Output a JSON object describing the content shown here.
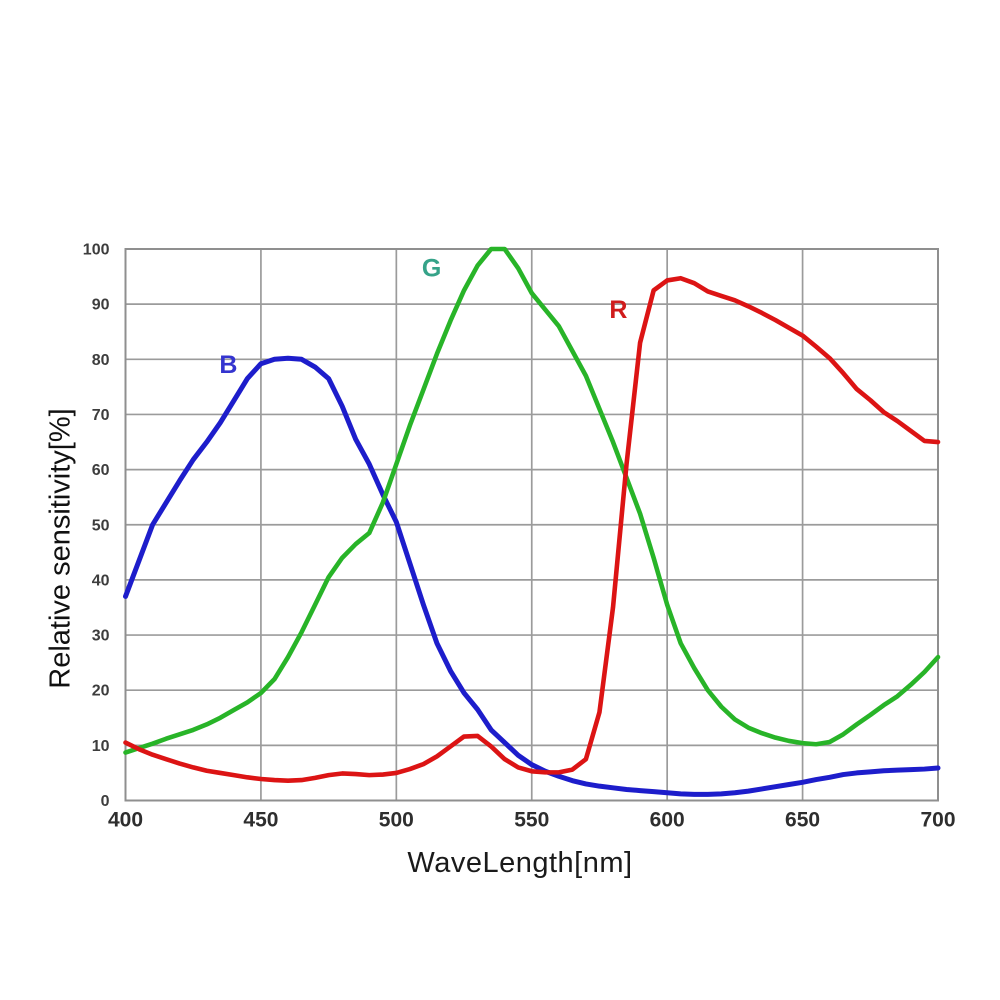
{
  "axis_titles": {
    "x": "WaveLength[nm]",
    "y": "Relative sensitivity[%]"
  },
  "colors": {
    "background": "#ffffff",
    "grid": "#9b9b9b",
    "border": "#8f8f8f",
    "tick_text": "#3d3d3d",
    "blue_curve": "#1d1dcb",
    "green_curve": "#28b428",
    "red_curve": "#dc1414",
    "label_b": "#3434cf",
    "label_g": "#36a389",
    "label_r": "#d01c1c"
  },
  "chart_data": {
    "type": "line",
    "title": "",
    "xlabel": "WaveLength[nm]",
    "ylabel": "Relative sensitivity[%]",
    "xlim": [
      400,
      700
    ],
    "ylim": [
      0,
      100
    ],
    "x_ticks": [
      400,
      450,
      500,
      550,
      600,
      650,
      700
    ],
    "y_ticks": [
      0,
      10,
      20,
      30,
      40,
      50,
      60,
      70,
      80,
      90,
      100
    ],
    "grid": true,
    "legend_position": "inline-labels",
    "x_start": 400,
    "x_step": 5,
    "series": [
      {
        "name": "B",
        "color": "#1d1dcb",
        "label": "B",
        "label_color": "#3434cf",
        "label_x": 438,
        "label_y": 77.5,
        "line_width": 5,
        "values": [
          37,
          43.5,
          50,
          54,
          58,
          61.8,
          65,
          68.5,
          72.5,
          76.5,
          79.2,
          80,
          80.2,
          80,
          78.6,
          76.5,
          71.5,
          65.5,
          61,
          55.5,
          50.5,
          43,
          35.5,
          28.5,
          23.5,
          19.5,
          16.5,
          12.8,
          10.5,
          8.2,
          6.5,
          5.3,
          4.4,
          3.6,
          3,
          2.6,
          2.3,
          2,
          1.8,
          1.6,
          1.4,
          1.2,
          1.1,
          1.1,
          1.2,
          1.4,
          1.7,
          2.1,
          2.5,
          2.9,
          3.3,
          3.8,
          4.2,
          4.7,
          5,
          5.2,
          5.4,
          5.5,
          5.6,
          5.7,
          5.9
        ]
      },
      {
        "name": "G",
        "color": "#28b428",
        "label": "G",
        "label_color": "#36a389",
        "label_x": 513,
        "label_y": 95,
        "line_width": 4.6,
        "values": [
          8.7,
          9.5,
          10.3,
          11.2,
          12,
          12.8,
          13.8,
          15,
          16.4,
          17.8,
          19.5,
          22,
          26,
          30.5,
          35.5,
          40.5,
          44,
          46.5,
          48.5,
          54,
          61,
          68,
          74.5,
          81,
          87,
          92.5,
          97,
          100,
          100,
          96.5,
          92,
          89,
          86,
          81.5,
          77,
          71,
          65,
          58.5,
          52,
          44,
          35.5,
          28.5,
          24,
          20,
          17,
          14.7,
          13.2,
          12.2,
          11.4,
          10.8,
          10.4,
          10.2,
          10.6,
          12,
          13.8,
          15.5,
          17.3,
          18.9,
          21,
          23.3,
          26
        ]
      },
      {
        "name": "R",
        "color": "#dc1414",
        "label": "R",
        "label_color": "#d01c1c",
        "label_x": 582,
        "label_y": 87.5,
        "line_width": 4.6,
        "values": [
          10.5,
          9.3,
          8.3,
          7.5,
          6.7,
          6,
          5.4,
          5,
          4.6,
          4.2,
          3.9,
          3.7,
          3.6,
          3.7,
          4.1,
          4.6,
          4.9,
          4.8,
          4.6,
          4.7,
          5,
          5.7,
          6.6,
          8,
          9.8,
          11.6,
          11.7,
          9.8,
          7.5,
          6,
          5.3,
          5.1,
          5.1,
          5.6,
          7.5,
          16,
          35,
          61,
          83,
          92.5,
          94.3,
          94.7,
          93.8,
          92.3,
          91.5,
          90.7,
          89.6,
          88.4,
          87.1,
          85.7,
          84.3,
          82.3,
          80.2,
          77.5,
          74.6,
          72.6,
          70.4,
          68.8,
          67,
          65.2,
          65
        ]
      }
    ]
  }
}
